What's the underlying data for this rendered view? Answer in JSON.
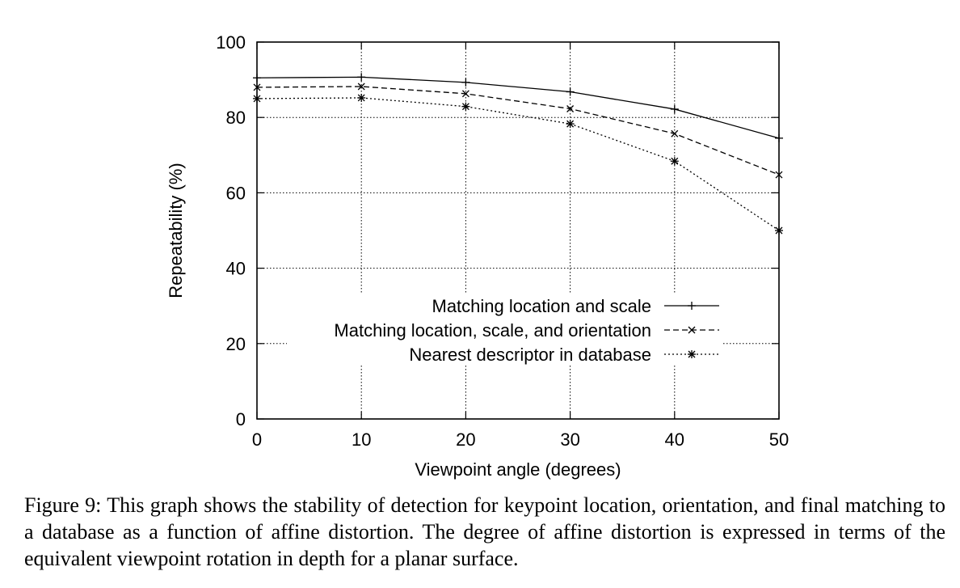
{
  "chart_data": {
    "type": "line",
    "xlabel": "Viewpoint angle (degrees)",
    "ylabel": "Repeatability (%)",
    "xlim": [
      0,
      50
    ],
    "ylim": [
      0,
      100
    ],
    "xticks": [
      0,
      10,
      20,
      30,
      40,
      50
    ],
    "yticks": [
      0,
      20,
      40,
      60,
      80,
      100
    ],
    "grid": true,
    "legend_position": "bottom-right",
    "x": [
      0,
      10,
      20,
      30,
      40,
      50
    ],
    "series": [
      {
        "name": "Matching location and scale",
        "values": [
          90.5,
          90.7,
          89.3,
          86.8,
          82.2,
          74.5
        ],
        "line_style": "solid",
        "marker": "plus"
      },
      {
        "name": "Matching location, scale, and orientation",
        "values": [
          88.0,
          88.2,
          86.3,
          82.3,
          75.7,
          64.8
        ],
        "line_style": "dashed",
        "marker": "cross"
      },
      {
        "name": "Nearest descriptor in database",
        "values": [
          85.0,
          85.2,
          82.9,
          78.3,
          68.4,
          50.0
        ],
        "line_style": "dotted",
        "marker": "star"
      }
    ]
  },
  "caption": "Figure 9: This graph shows the stability of detection for keypoint location, orientation, and final matching to a database as a function of affine distortion. The degree of affine distortion is expressed in terms of the equivalent viewpoint rotation in depth for a planar surface."
}
